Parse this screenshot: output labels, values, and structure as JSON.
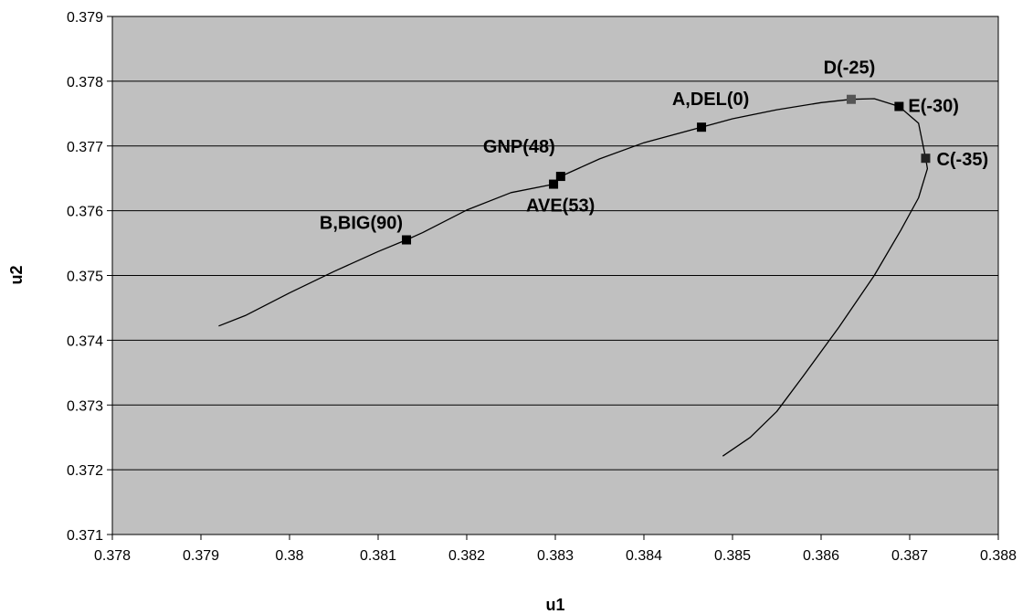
{
  "chart_data": {
    "type": "scatter",
    "xlabel": "u1",
    "ylabel": "u2",
    "xlim": [
      0.378,
      0.388
    ],
    "ylim": [
      0.371,
      0.379
    ],
    "x_ticks": [
      "0.378",
      "0.379",
      "0.38",
      "0.381",
      "0.382",
      "0.383",
      "0.384",
      "0.385",
      "0.386",
      "0.387",
      "0.388"
    ],
    "y_ticks": [
      "0.371",
      "0.372",
      "0.373",
      "0.374",
      "0.375",
      "0.376",
      "0.377",
      "0.378",
      "0.379"
    ],
    "grid": "horizontal",
    "legend": "none",
    "plot_background": "#c0c0c0",
    "curve_color": "#000000",
    "curve": {
      "x": [
        0.3792,
        0.3795,
        0.38,
        0.3805,
        0.381,
        0.38132,
        0.3815,
        0.382,
        0.3825,
        0.38298,
        0.38306,
        0.3835,
        0.384,
        0.38465,
        0.385,
        0.3855,
        0.386,
        0.38634,
        0.3866,
        0.38688,
        0.3871,
        0.38718,
        0.3872,
        0.3871,
        0.3869,
        0.3866,
        0.3862,
        0.3858,
        0.3855,
        0.3852,
        0.38489
      ],
      "y": [
        0.37422,
        0.37438,
        0.37473,
        0.37506,
        0.37537,
        0.37555,
        0.37566,
        0.37601,
        0.37628,
        0.37641,
        0.37653,
        0.3768,
        0.37705,
        0.37729,
        0.37742,
        0.37756,
        0.37767,
        0.37772,
        0.37773,
        0.37761,
        0.37735,
        0.37681,
        0.37665,
        0.3762,
        0.3757,
        0.375,
        0.3742,
        0.37345,
        0.3729,
        0.3725,
        0.37221
      ]
    },
    "points": [
      {
        "label": "B,BIG(90)",
        "x": 0.38132,
        "y": 0.37555,
        "color": "#000000"
      },
      {
        "label": "GNP(48)",
        "x": 0.38306,
        "y": 0.37653,
        "color": "#000000"
      },
      {
        "label": "AVE(53)",
        "x": 0.38298,
        "y": 0.37641,
        "color": "#000000"
      },
      {
        "label": "A,DEL(0)",
        "x": 0.38465,
        "y": 0.37729,
        "color": "#000000"
      },
      {
        "label": "D(-25)",
        "x": 0.38634,
        "y": 0.37772,
        "color": "#555555"
      },
      {
        "label": "E(-30)",
        "x": 0.38688,
        "y": 0.37761,
        "color": "#000000"
      },
      {
        "label": "C(-35)",
        "x": 0.38718,
        "y": 0.37681,
        "color": "#222222"
      }
    ]
  }
}
